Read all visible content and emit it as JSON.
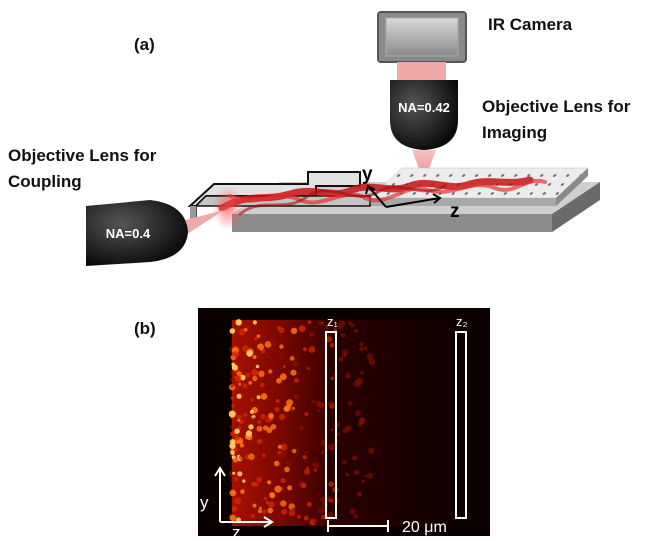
{
  "panel_a": {
    "label": "(a)",
    "camera_label": "IR Camera",
    "imaging_lens_label_line1": "Objective Lens for",
    "imaging_lens_label_line2": "Imaging",
    "coupling_lens_label_line1": "Objective Lens for",
    "coupling_lens_label_line2": "Coupling",
    "imaging_na": "NA=0.42",
    "coupling_na": "NA=0.4",
    "axis_y": "y",
    "axis_z": "z"
  },
  "panel_b": {
    "label": "(b)",
    "marker_z1": "z₁",
    "marker_z2": "z₂",
    "scale_bar_text": "20 μm",
    "axis_y": "y",
    "axis_z": "z"
  },
  "colors": {
    "laser": "#e01818",
    "beam_cone": "#f0b0b0",
    "lens_body": "#111111",
    "camera_body": "#888888",
    "image_bg": "#0a0000"
  }
}
